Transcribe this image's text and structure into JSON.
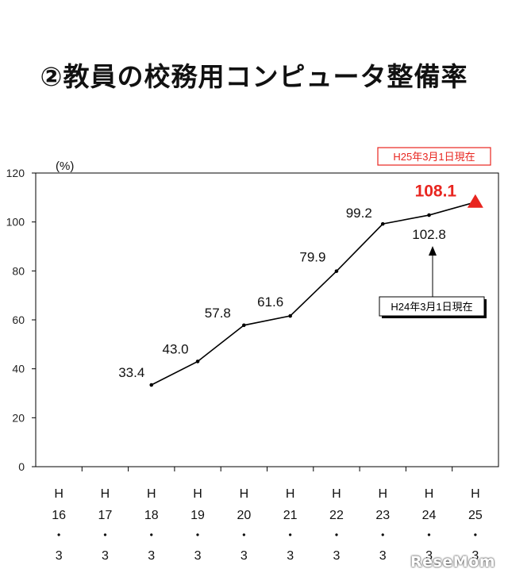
{
  "title": "②教員の校務用コンピュータ整備率",
  "watermark": "ReseMom",
  "chart_data": {
    "type": "line",
    "ylabel": "(%)",
    "ylim": [
      0,
      120
    ],
    "yticks": [
      0,
      20,
      40,
      60,
      80,
      100,
      120
    ],
    "categories": [
      [
        "H",
        "16",
        "・",
        "3"
      ],
      [
        "H",
        "17",
        "・",
        "3"
      ],
      [
        "H",
        "18",
        "・",
        "3"
      ],
      [
        "H",
        "19",
        "・",
        "3"
      ],
      [
        "H",
        "20",
        "・",
        "3"
      ],
      [
        "H",
        "21",
        "・",
        "3"
      ],
      [
        "H",
        "22",
        "・",
        "3"
      ],
      [
        "H",
        "23",
        "・",
        "3"
      ],
      [
        "H",
        "24",
        "・",
        "3"
      ],
      [
        "H",
        "25",
        "・",
        "3"
      ]
    ],
    "values": [
      null,
      null,
      33.4,
      43.0,
      57.8,
      61.6,
      79.9,
      99.2,
      102.8,
      108.1
    ],
    "data_labels": [
      "",
      "",
      "33.4",
      "43.0",
      "57.8",
      "61.6",
      "79.9",
      "99.2",
      "102.8",
      "108.1"
    ],
    "line_color": "#000000",
    "highlight_color": "#e8251f",
    "grid": false,
    "annotations": {
      "latest_box": "H25年3月1日現在",
      "prev_box": "H24年3月1日現在"
    }
  }
}
